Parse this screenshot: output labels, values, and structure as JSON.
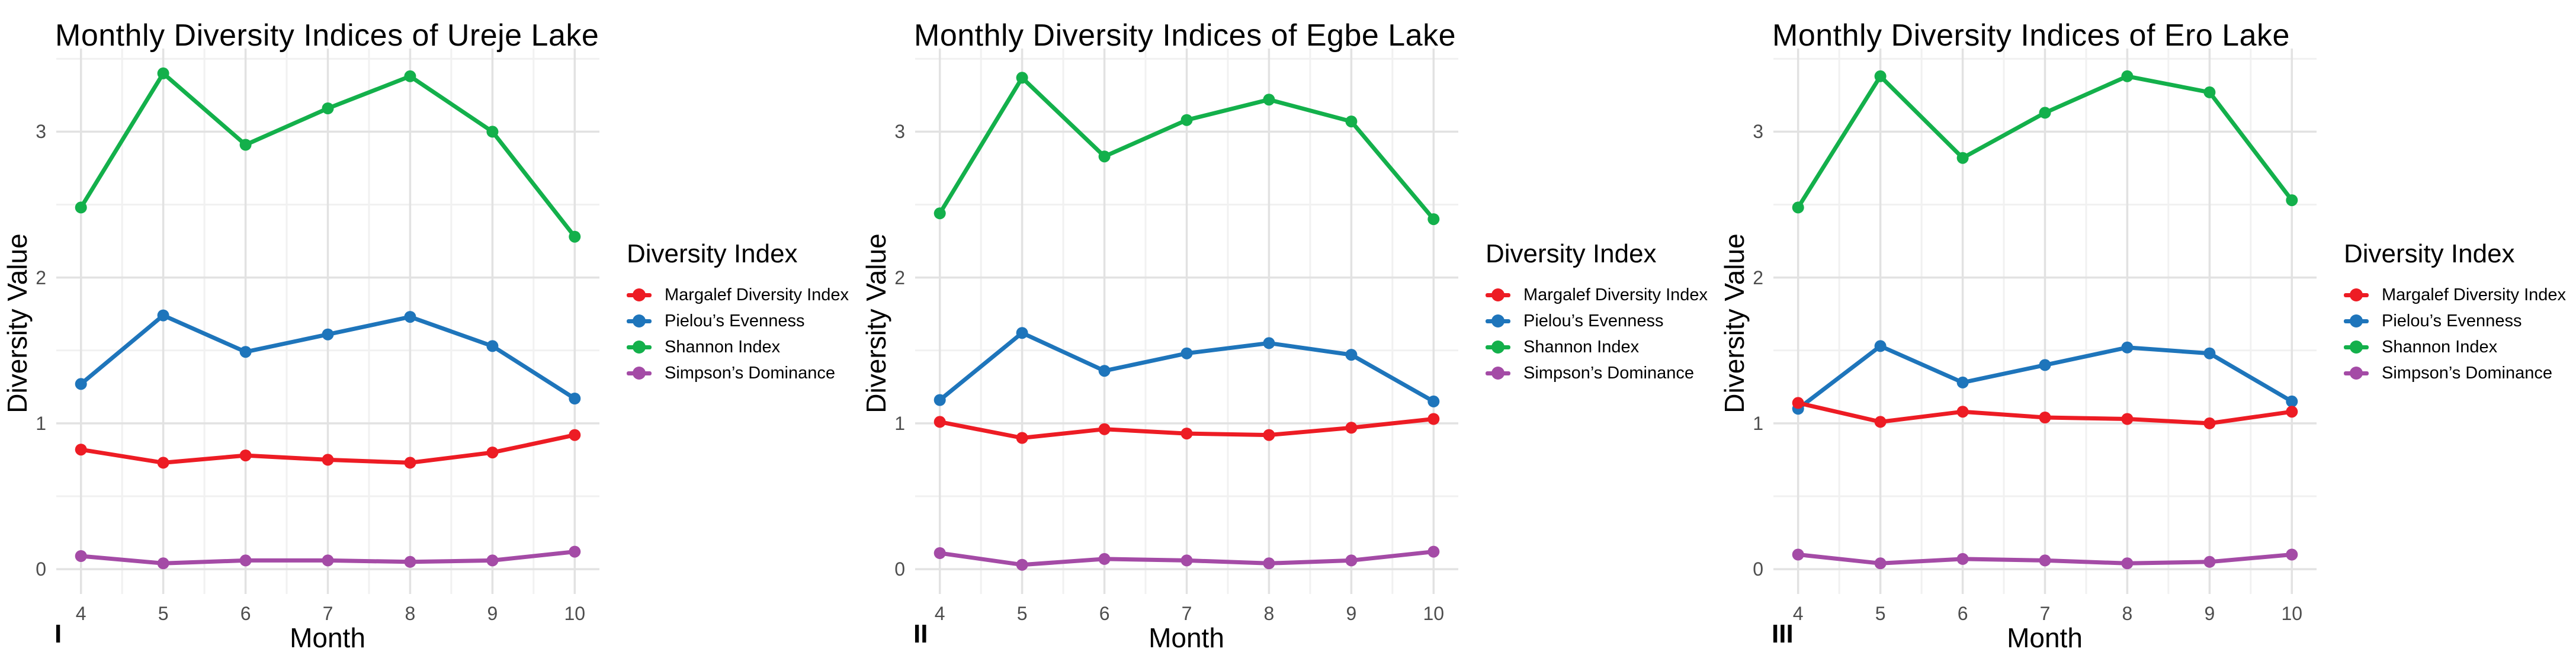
{
  "figure": {
    "background": "#FFFFFF"
  },
  "colors": {
    "margalef": "#ED1C24",
    "pielou": "#1E75BB",
    "shannon": "#13B04B",
    "simpson": "#A44BA6",
    "grid_major": "#E2E2E2",
    "grid_minor": "#F1F1F1",
    "tick_label": "#4D4D4D",
    "text": "#000000"
  },
  "axes": {
    "x_label": "Month",
    "y_label": "Diversity Value",
    "x_ticks": [
      4,
      5,
      6,
      7,
      8,
      9,
      10
    ],
    "y_ticks": [
      0,
      1,
      2,
      3
    ],
    "x_range": [
      3.7,
      10.3
    ],
    "y_range": [
      -0.17,
      3.57
    ],
    "grid": "on"
  },
  "legend": {
    "title": "Diversity Index",
    "position": "right",
    "items": [
      {
        "label": "Margalef Diversity Index",
        "color_key": "margalef"
      },
      {
        "label": "Pielou’s Evenness",
        "color_key": "pielou"
      },
      {
        "label": "Shannon Index",
        "color_key": "shannon"
      },
      {
        "label": "Simpson’s Dominance",
        "color_key": "simpson"
      }
    ]
  },
  "chart_data": [
    {
      "type": "line",
      "title": "Monthly Diversity Indices of Ureje Lake",
      "panel_label": "I",
      "xlabel": "Month",
      "ylabel": "Diversity Value",
      "x": [
        4,
        5,
        6,
        7,
        8,
        9,
        10
      ],
      "ylim": [
        0,
        3.5
      ],
      "series": [
        {
          "name": "Margalef Diversity Index",
          "color_key": "margalef",
          "values": [
            0.82,
            0.73,
            0.78,
            0.75,
            0.73,
            0.8,
            0.92
          ]
        },
        {
          "name": "Pielou’s Evenness",
          "color_key": "pielou",
          "values": [
            1.27,
            1.74,
            1.49,
            1.61,
            1.73,
            1.53,
            1.17
          ]
        },
        {
          "name": "Shannon Index",
          "color_key": "shannon",
          "values": [
            2.48,
            3.4,
            2.91,
            3.16,
            3.38,
            3.0,
            2.28
          ]
        },
        {
          "name": "Simpson’s Dominance",
          "color_key": "simpson",
          "values": [
            0.09,
            0.04,
            0.06,
            0.06,
            0.05,
            0.06,
            0.12
          ]
        }
      ]
    },
    {
      "type": "line",
      "title": "Monthly Diversity Indices of Egbe Lake",
      "panel_label": "II",
      "xlabel": "Month",
      "ylabel": "Diversity Value",
      "x": [
        4,
        5,
        6,
        7,
        8,
        9,
        10
      ],
      "ylim": [
        0,
        3.5
      ],
      "series": [
        {
          "name": "Margalef Diversity Index",
          "color_key": "margalef",
          "values": [
            1.01,
            0.9,
            0.96,
            0.93,
            0.92,
            0.97,
            1.03
          ]
        },
        {
          "name": "Pielou’s Evenness",
          "color_key": "pielou",
          "values": [
            1.16,
            1.62,
            1.36,
            1.48,
            1.55,
            1.47,
            1.15
          ]
        },
        {
          "name": "Shannon Index",
          "color_key": "shannon",
          "values": [
            2.44,
            3.37,
            2.83,
            3.08,
            3.22,
            3.07,
            2.4
          ]
        },
        {
          "name": "Simpson’s Dominance",
          "color_key": "simpson",
          "values": [
            0.11,
            0.03,
            0.07,
            0.06,
            0.04,
            0.06,
            0.12
          ]
        }
      ]
    },
    {
      "type": "line",
      "title": "Monthly Diversity Indices of Ero Lake",
      "panel_label": "III",
      "xlabel": "Month",
      "ylabel": "Diversity Value",
      "x": [
        4,
        5,
        6,
        7,
        8,
        9,
        10
      ],
      "ylim": [
        0,
        3.5
      ],
      "series": [
        {
          "name": "Margalef Diversity Index",
          "color_key": "margalef",
          "values": [
            1.14,
            1.01,
            1.08,
            1.04,
            1.03,
            1.0,
            1.08
          ]
        },
        {
          "name": "Pielou’s Evenness",
          "color_key": "pielou",
          "values": [
            1.1,
            1.53,
            1.28,
            1.4,
            1.52,
            1.48,
            1.15
          ]
        },
        {
          "name": "Shannon Index",
          "color_key": "shannon",
          "values": [
            2.48,
            3.38,
            2.82,
            3.13,
            3.38,
            3.27,
            2.53
          ]
        },
        {
          "name": "Simpson’s Dominance",
          "color_key": "simpson",
          "values": [
            0.1,
            0.04,
            0.07,
            0.06,
            0.04,
            0.05,
            0.1
          ]
        }
      ]
    }
  ]
}
